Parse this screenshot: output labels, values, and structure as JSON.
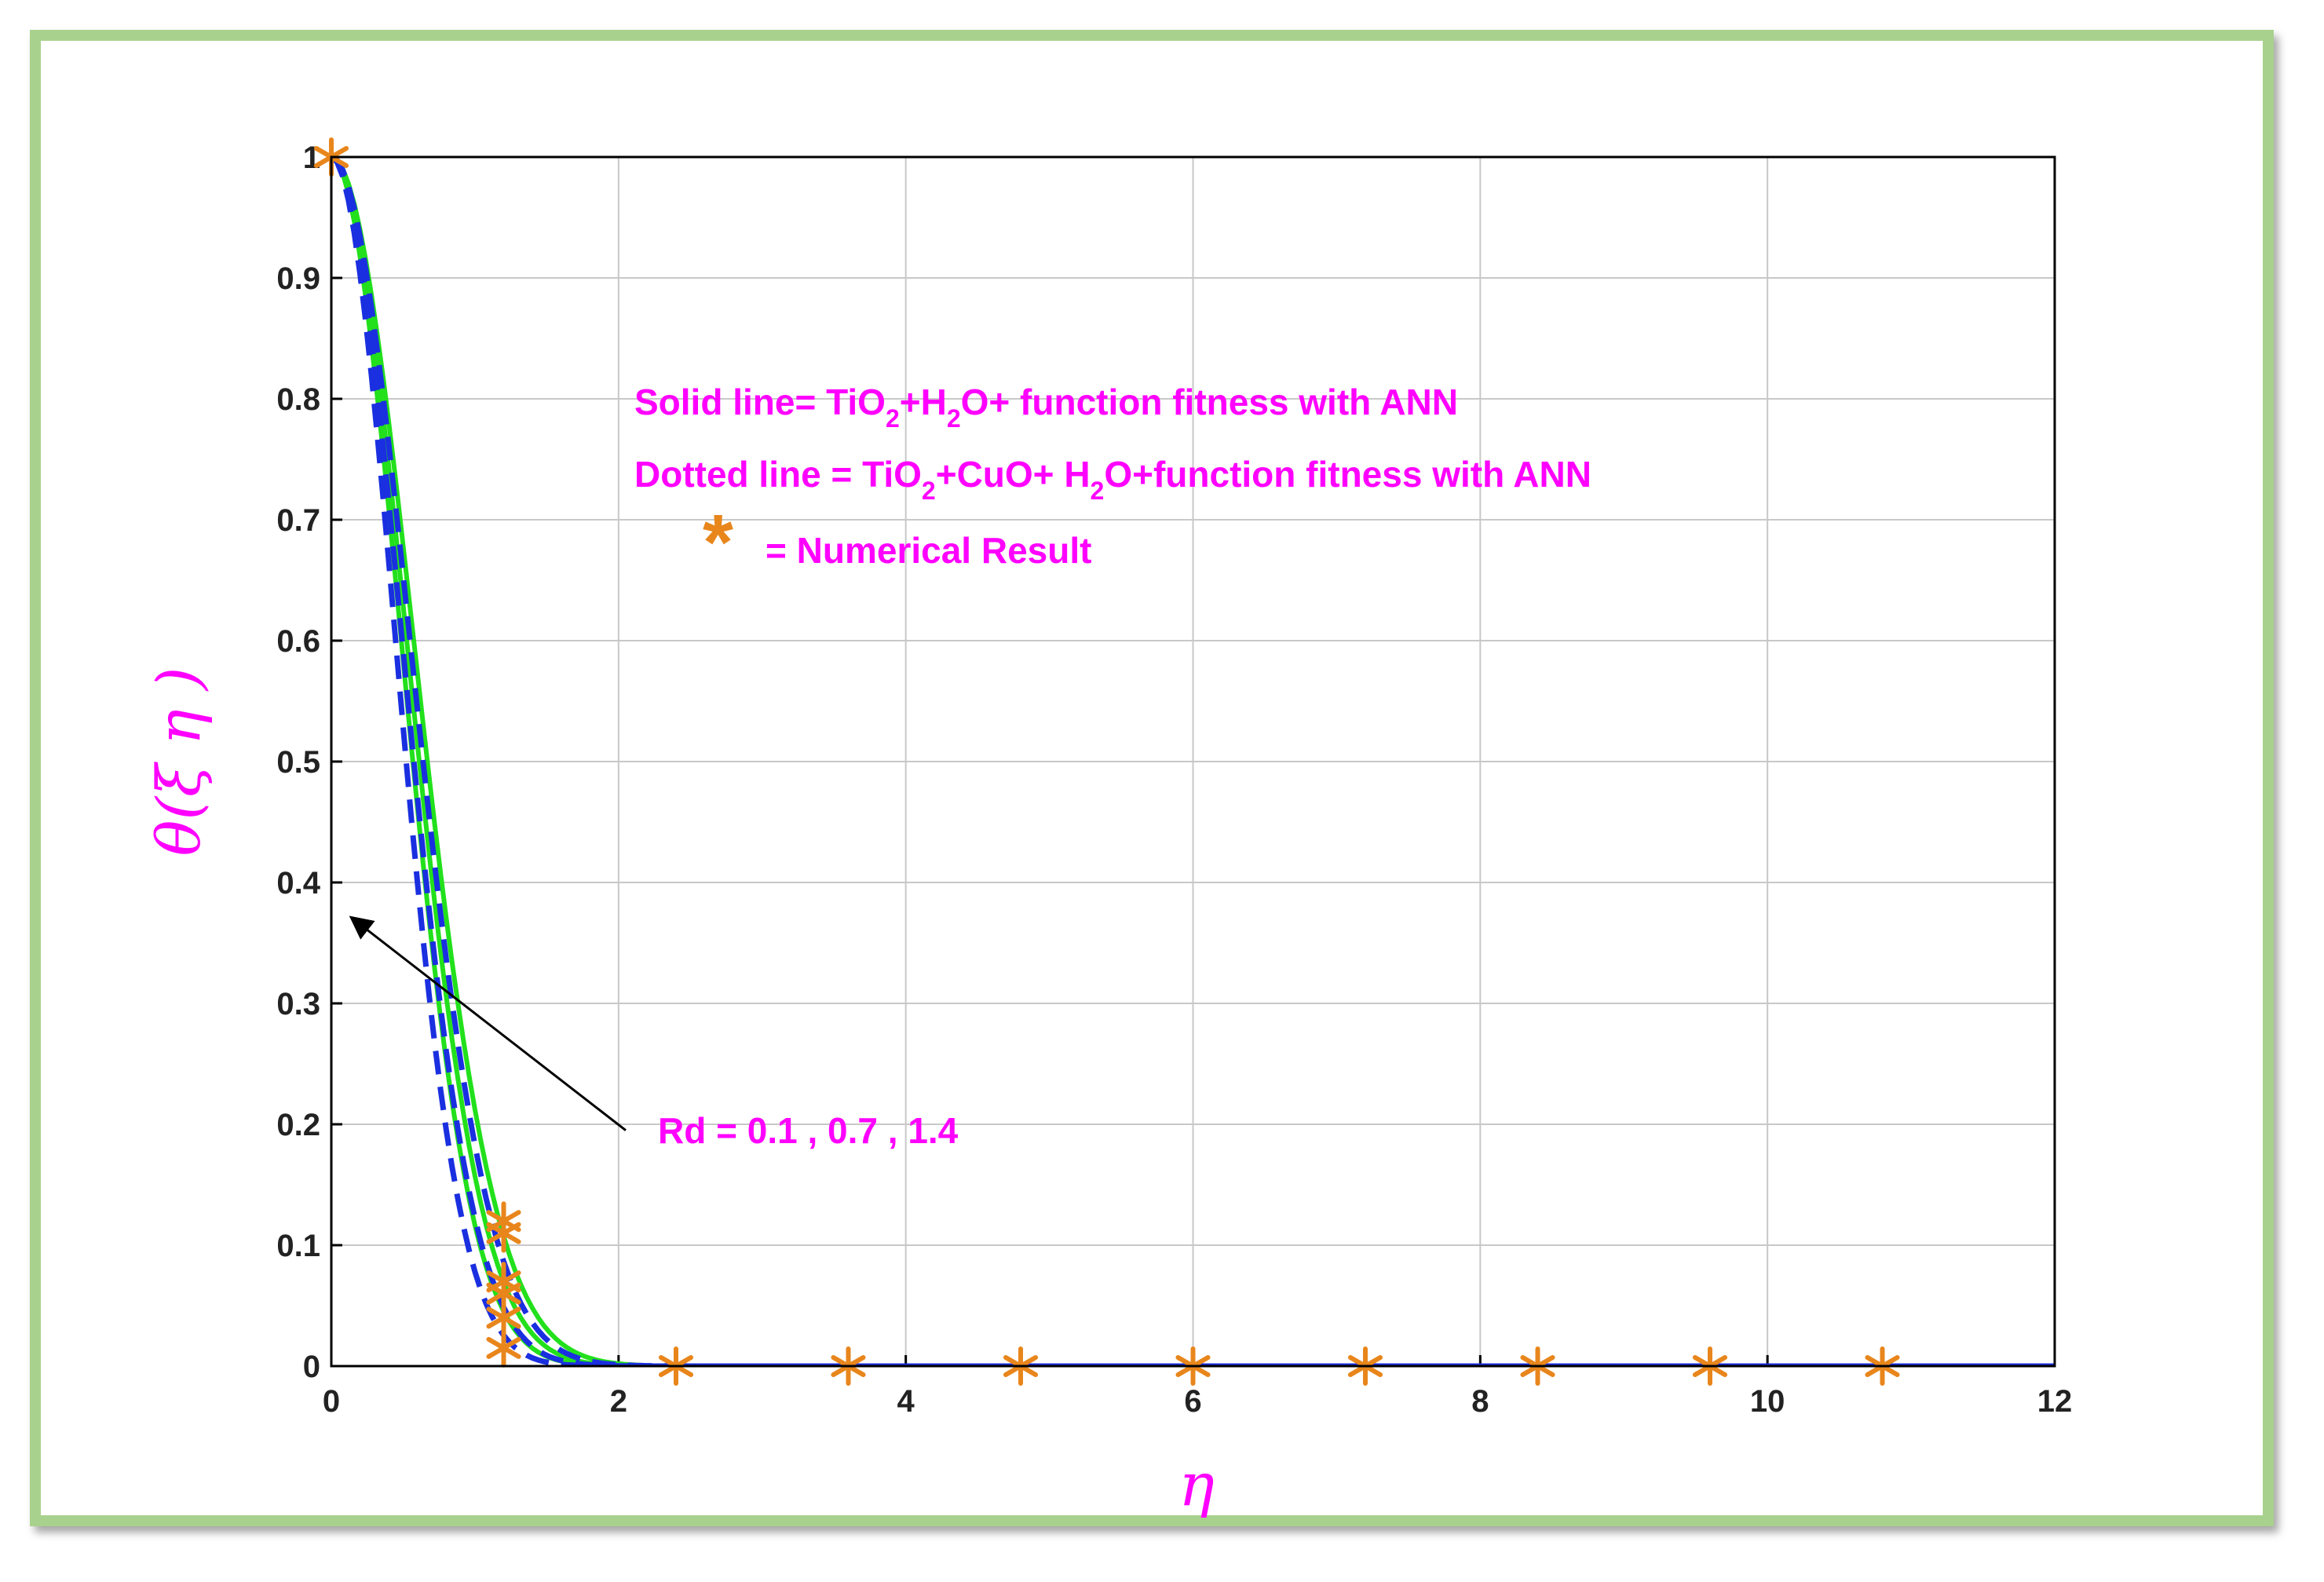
{
  "chart_data": {
    "type": "line",
    "xlabel": "η",
    "ylabel": "θ(ξ η )",
    "xlim": [
      0,
      12
    ],
    "ylim": [
      0,
      1
    ],
    "x_ticks": [
      "0",
      "2",
      "4",
      "6",
      "8",
      "10",
      "12"
    ],
    "y_ticks": [
      "0",
      "0.1",
      "0.2",
      "0.3",
      "0.4",
      "0.5",
      "0.6",
      "0.7",
      "0.8",
      "0.9",
      "1"
    ],
    "grid": true,
    "colors": {
      "solid": "#22e01c",
      "dotted": "#1a2fe0",
      "marker": "#e8861c",
      "text": "#ff00ff",
      "frame": "#a9d18e"
    },
    "legend": {
      "solid_prefix": "Solid line= TiO",
      "solid_sub1": "2",
      "solid_mid": "+H",
      "solid_sub2": "2",
      "solid_suffix": "O+ function fitness with ANN",
      "dotted_prefix": "Dotted line = TiO",
      "dotted_sub1": "2",
      "dotted_mid": "+CuO+ H",
      "dotted_sub2": "2",
      "dotted_suffix": "O+function fitness with ANN",
      "marker_symbol": "*",
      "marker_text": "=  Numerical Result"
    },
    "annotation": {
      "text": "Rd = 0.1 , 0.7 , 1.4",
      "arrow_from": [
        2.05,
        0.195
      ],
      "arrow_to": [
        0.15,
        0.37
      ]
    },
    "series": [
      {
        "style": "solid",
        "k": 1.55
      },
      {
        "style": "solid",
        "k": 1.85
      },
      {
        "style": "solid",
        "k": 2.15
      },
      {
        "style": "dotted",
        "k": 1.7
      },
      {
        "style": "dotted",
        "k": 2.1
      },
      {
        "style": "dotted",
        "k": 2.55
      }
    ],
    "markers": [
      {
        "x": 0,
        "y": 1.0
      },
      {
        "x": 1.2,
        "y": 0.12
      },
      {
        "x": 1.2,
        "y": 0.11
      },
      {
        "x": 1.2,
        "y": 0.07
      },
      {
        "x": 1.2,
        "y": 0.06
      },
      {
        "x": 1.2,
        "y": 0.04
      },
      {
        "x": 1.2,
        "y": 0.015
      },
      {
        "x": 2.4,
        "y": 0
      },
      {
        "x": 3.6,
        "y": 0
      },
      {
        "x": 4.8,
        "y": 0
      },
      {
        "x": 6.0,
        "y": 0
      },
      {
        "x": 7.2,
        "y": 0
      },
      {
        "x": 8.4,
        "y": 0
      },
      {
        "x": 9.6,
        "y": 0
      },
      {
        "x": 10.8,
        "y": 0
      }
    ]
  }
}
